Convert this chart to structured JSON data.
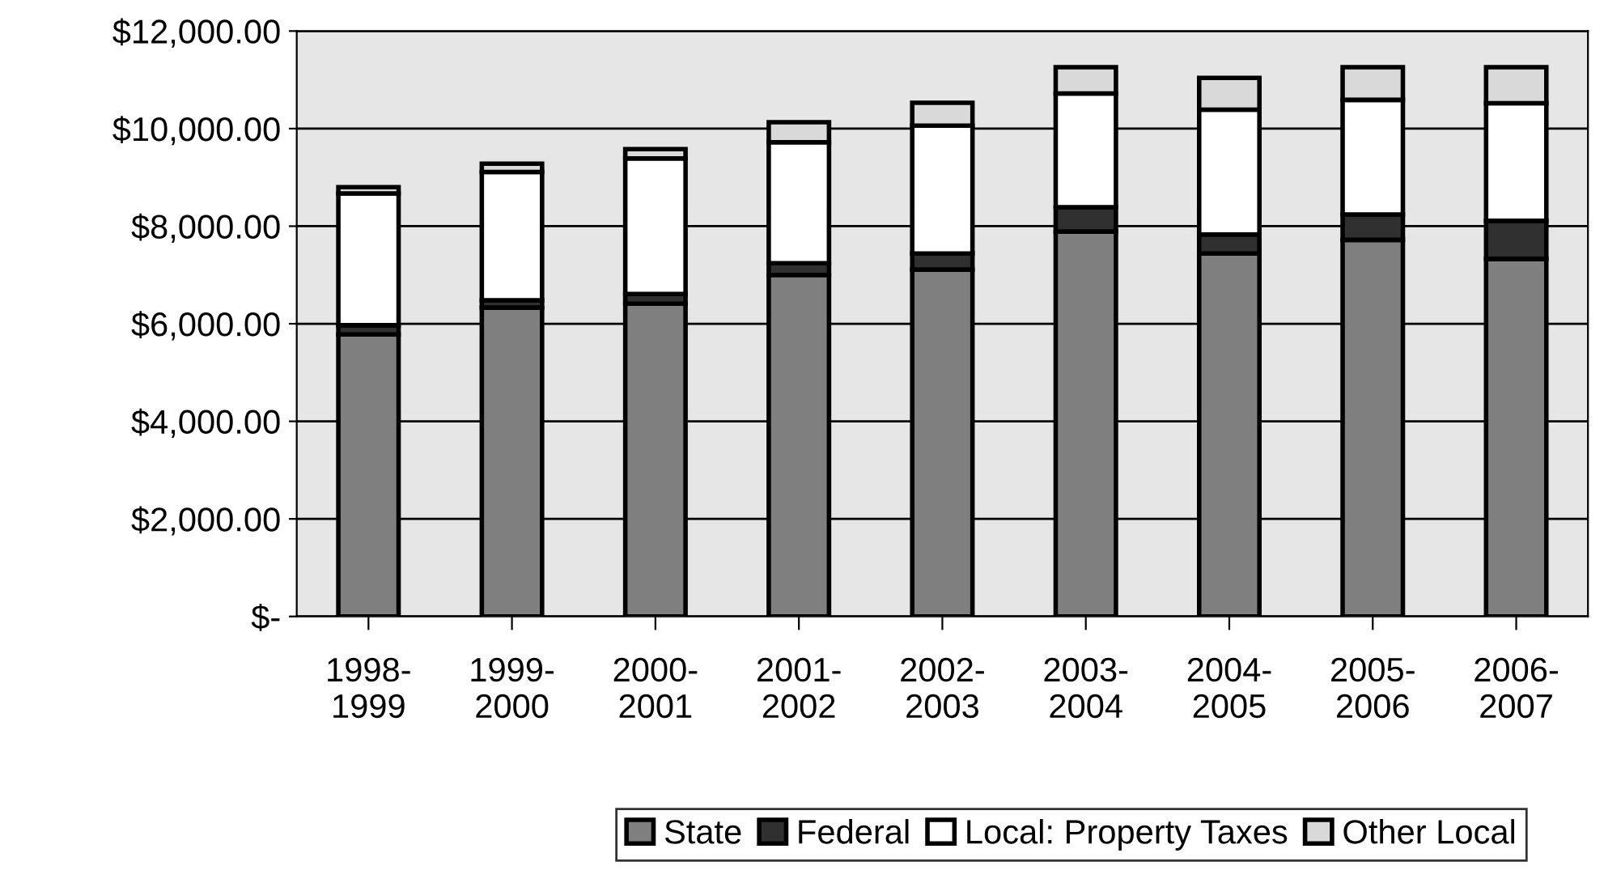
{
  "chart_data": {
    "type": "bar",
    "stacked": true,
    "categories": [
      "1998-\n1999",
      "1999-\n2000",
      "2000-\n2001",
      "2001-\n2002",
      "2002-\n2003",
      "2003-\n2004",
      "2004-\n2005",
      "2005-\n2006",
      "2006-\n2007"
    ],
    "series": [
      {
        "name": "State",
        "color": "#7f7f7f",
        "values": [
          5780,
          6330,
          6410,
          7000,
          7110,
          7890,
          7440,
          7720,
          7330
        ]
      },
      {
        "name": "Federal",
        "color": "#303030",
        "values": [
          190,
          150,
          200,
          240,
          330,
          500,
          390,
          520,
          780
        ]
      },
      {
        "name": "Local: Property Taxes",
        "color": "#ffffff",
        "values": [
          2700,
          2630,
          2780,
          2480,
          2620,
          2330,
          2560,
          2350,
          2410
        ]
      },
      {
        "name": "Other Local",
        "color": "#d9d9d9",
        "values": [
          130,
          170,
          190,
          410,
          470,
          540,
          650,
          670,
          740
        ]
      }
    ],
    "ylim": [
      0,
      12000
    ],
    "yticks": [
      {
        "value": 0,
        "label": "$-"
      },
      {
        "value": 2000,
        "label": "$2,000.00"
      },
      {
        "value": 4000,
        "label": "$4,000.00"
      },
      {
        "value": 6000,
        "label": "$6,000.00"
      },
      {
        "value": 8000,
        "label": "$8,000.00"
      },
      {
        "value": 10000,
        "label": "$10,000.00"
      },
      {
        "value": 12000,
        "label": "$12,000.00"
      }
    ],
    "grid": "y",
    "legend": "bottom"
  }
}
